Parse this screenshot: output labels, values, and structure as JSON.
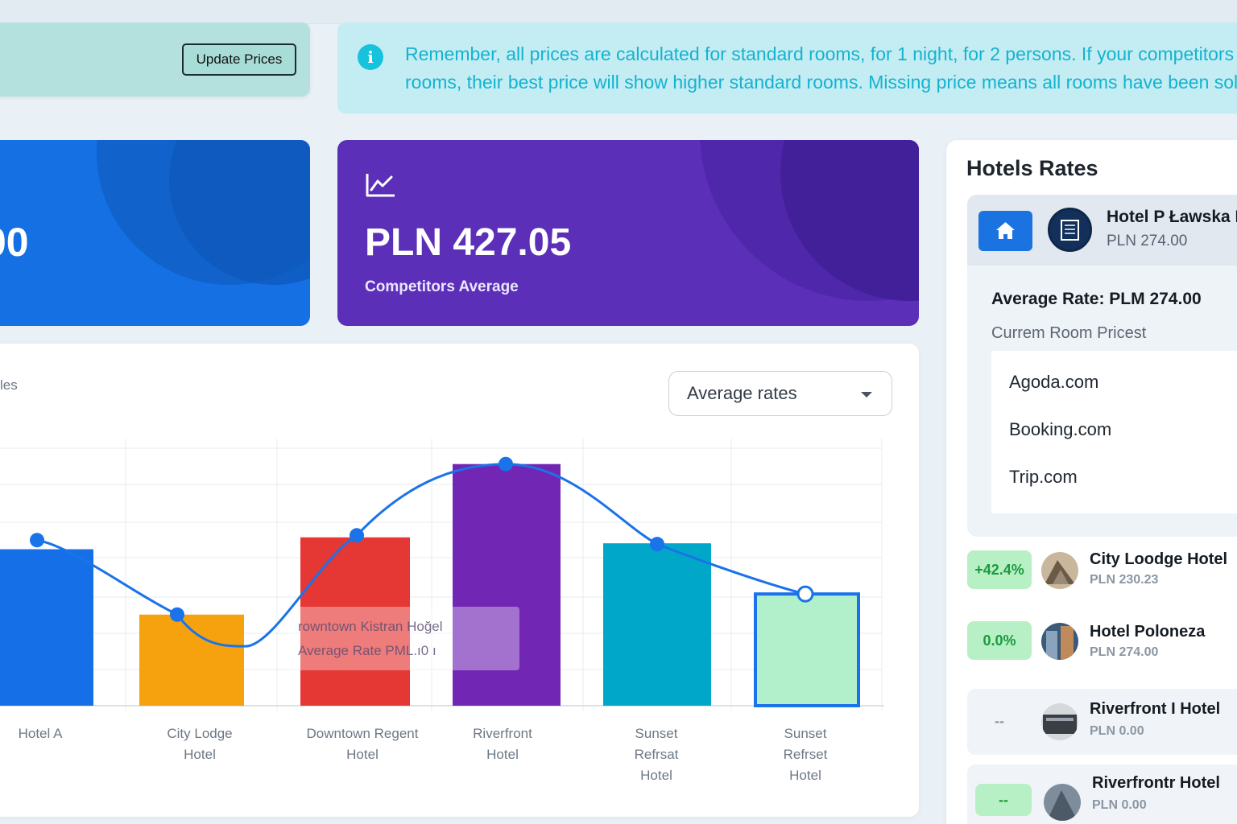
{
  "toolbar": {
    "update_label": "Update Prices"
  },
  "info": {
    "line1": "Remember, all prices are calculated for standard rooms, for 1 night, for 2 persons. If your competitors h",
    "line2": "rooms, their best price will show higher standard rooms. Missing price means all rooms have been sold"
  },
  "kpis": {
    "own_value": "00",
    "competitors_value": "PLN 427.05",
    "competitors_label": "Competitors Average"
  },
  "chart_panel": {
    "partial_label": "les",
    "dropdown_value": "Average rates"
  },
  "tooltip": {
    "line1": "rowntown Kistran Hoğel",
    "line2": "Average Rate PML.ı0 ı"
  },
  "chart_data": {
    "type": "bar",
    "categories": [
      [
        "Hotel A"
      ],
      [
        "City Lodge",
        "Hotel"
      ],
      [
        "Downtown Regent",
        "Hotel"
      ],
      [
        "Riverfront",
        "Hotel"
      ],
      [
        "Sunset",
        "Refrsat",
        "Hotel"
      ],
      [
        "Sunset",
        "Refrset",
        "Hotel"
      ]
    ],
    "values": [
      395,
      230,
      425,
      610,
      410,
      282
    ],
    "line_values": [
      418,
      230,
      430,
      610,
      408,
      282
    ],
    "line_min": {
      "after_index": 1,
      "value": 150
    },
    "colors": [
      "#1570e8",
      "#f6a20f",
      "#e53734",
      "#7227b4",
      "#01a7c8",
      "#b2f0cb"
    ],
    "line_color": "#1a73e8",
    "ylim": [
      0,
      650
    ],
    "grid": true
  },
  "rates": {
    "title": "Hotels Rates",
    "own": {
      "name": "Hotel P Ławska H",
      "price": "PLN 274.00",
      "avg_rate": "Average Rate: PLM 274.00",
      "current_room_label": "Currem Room Pricest",
      "otas": [
        "Agoda.com",
        "Booking.com",
        "Trip.com"
      ]
    },
    "competitors": [
      {
        "badge": "+42.4%",
        "name": "City Loodge Hotel",
        "price": "PLN 230.23"
      },
      {
        "badge": "0.0%",
        "name": "Hotel Poloneza",
        "price": "PLN 274.00"
      },
      {
        "badge": "--",
        "name": "Riverfront I Hotel",
        "price": "PLN 0.00"
      },
      {
        "badge": "--",
        "name": "Riverfrontr Hotel",
        "price": "PLN 0.00"
      }
    ]
  }
}
